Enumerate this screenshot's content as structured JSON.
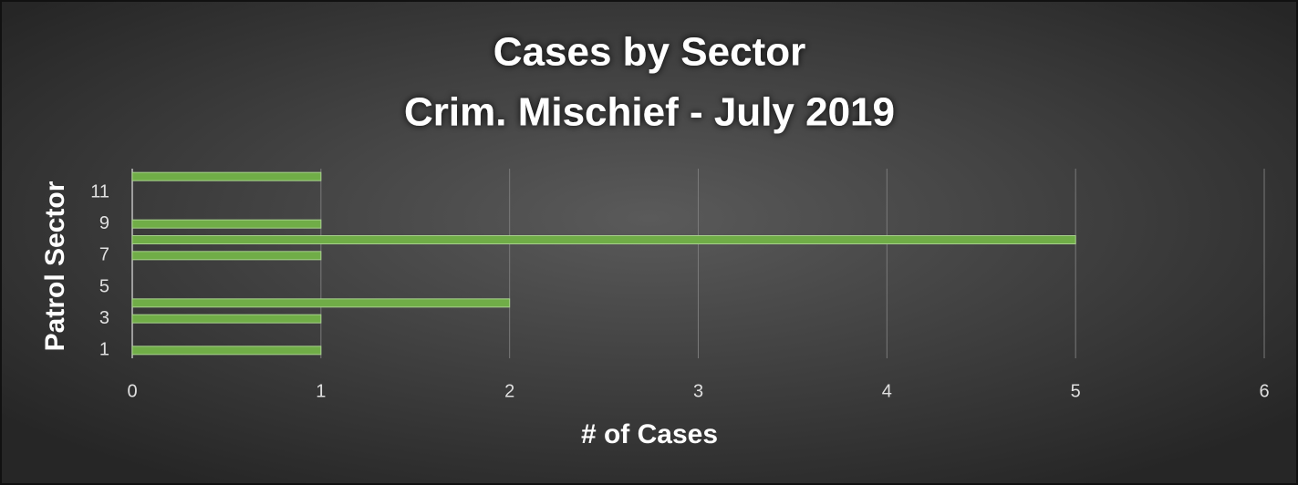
{
  "chart_data": {
    "type": "hbar",
    "title": [
      "Cases by Sector",
      "Crim. Mischief - July 2019"
    ],
    "y_label": "Patrol Sector",
    "x_label": "# of Cases",
    "categories": [
      "1",
      null,
      "3",
      null,
      "5",
      null,
      "7",
      null,
      "9",
      null,
      "11",
      null
    ],
    "values": [
      1,
      0,
      1,
      2,
      0,
      0,
      1,
      5,
      1,
      0,
      0,
      1
    ],
    "color": "#70ad47",
    "xlim": [
      0,
      6
    ],
    "xticks": [
      0,
      1,
      2,
      3,
      4,
      5,
      6
    ],
    "grid": true
  }
}
